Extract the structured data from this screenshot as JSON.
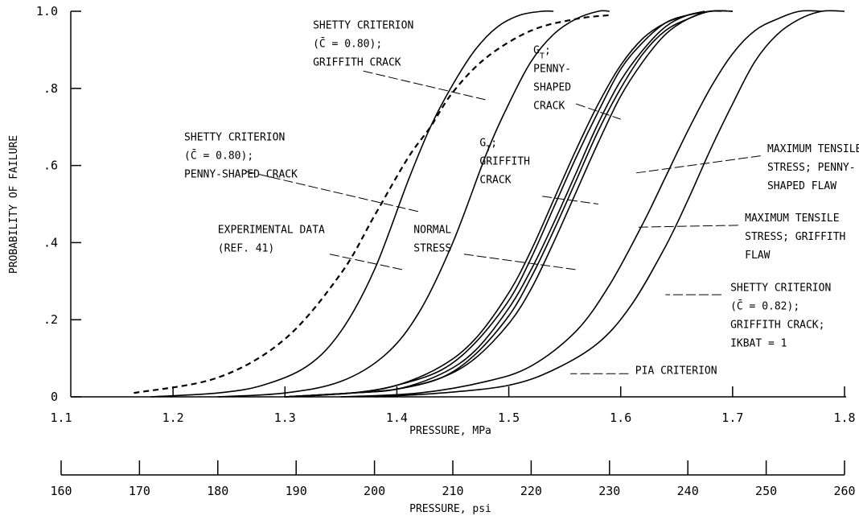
{
  "chart_data": {
    "type": "line",
    "ylabel": "PROBABILITY OF FAILURE",
    "xlabel": "PRESSURE, MPa",
    "xlabel_secondary": "PRESSURE, psi",
    "xlim": [
      1.1,
      1.8
    ],
    "ylim": [
      0,
      1.0
    ],
    "secondary_xlim": [
      160,
      260
    ],
    "x_ticks": [
      "1.1",
      "1.2",
      "1.3",
      "1.4",
      "1.5",
      "1.6",
      "1.7",
      "1.8"
    ],
    "y_ticks": [
      "0",
      ".2",
      ".4",
      ".6",
      ".8",
      "1.0"
    ],
    "secondary_ticks": [
      "160",
      "170",
      "180",
      "190",
      "200",
      "210",
      "220",
      "230",
      "240",
      "250",
      "260"
    ],
    "grid": false,
    "series": [
      {
        "style": "dashed",
        "x": [
          1.165,
          1.24,
          1.3,
          1.35,
          1.38,
          1.41,
          1.43,
          1.45,
          1.48,
          1.52,
          1.56,
          1.59
        ],
        "y": [
          0.01,
          0.05,
          0.15,
          0.32,
          0.47,
          0.62,
          0.7,
          0.79,
          0.88,
          0.95,
          0.98,
          0.99
        ]
      },
      {
        "style": "solid",
        "x": [
          1.18,
          1.24,
          1.28,
          1.32,
          1.35,
          1.38,
          1.41,
          1.43,
          1.45,
          1.47,
          1.49,
          1.51,
          1.53,
          1.54
        ],
        "y": [
          0.0,
          0.01,
          0.03,
          0.08,
          0.17,
          0.33,
          0.56,
          0.7,
          0.81,
          0.9,
          0.96,
          0.99,
          1.0,
          1.0
        ]
      },
      {
        "style": "solid",
        "x": [
          1.24,
          1.3,
          1.35,
          1.39,
          1.42,
          1.45,
          1.48,
          1.5,
          1.52,
          1.54,
          1.56,
          1.58,
          1.59
        ],
        "y": [
          0.0,
          0.01,
          0.04,
          0.11,
          0.22,
          0.4,
          0.63,
          0.76,
          0.87,
          0.94,
          0.98,
          1.0,
          1.0
        ]
      },
      {
        "style": "solid",
        "x": [
          1.3,
          1.36,
          1.4,
          1.44,
          1.47,
          1.5,
          1.52,
          1.54,
          1.56,
          1.58,
          1.6,
          1.62,
          1.64,
          1.66,
          1.675
        ],
        "y": [
          0.0,
          0.01,
          0.03,
          0.08,
          0.15,
          0.27,
          0.38,
          0.51,
          0.64,
          0.76,
          0.86,
          0.93,
          0.97,
          0.99,
          1.0
        ]
      },
      {
        "style": "solid",
        "x": [
          1.3,
          1.36,
          1.4,
          1.44,
          1.47,
          1.5,
          1.52,
          1.54,
          1.56,
          1.58,
          1.6,
          1.62,
          1.64,
          1.66,
          1.68
        ],
        "y": [
          0.0,
          0.01,
          0.03,
          0.07,
          0.14,
          0.25,
          0.36,
          0.49,
          0.62,
          0.74,
          0.85,
          0.92,
          0.97,
          0.99,
          1.0
        ]
      },
      {
        "style": "solid",
        "x": [
          1.3,
          1.36,
          1.4,
          1.44,
          1.47,
          1.5,
          1.52,
          1.54,
          1.56,
          1.58,
          1.6,
          1.62,
          1.64,
          1.66,
          1.68,
          1.69
        ],
        "y": [
          0.0,
          0.01,
          0.02,
          0.06,
          0.12,
          0.23,
          0.33,
          0.45,
          0.58,
          0.71,
          0.82,
          0.9,
          0.96,
          0.99,
          1.0,
          1.0
        ]
      },
      {
        "style": "solid",
        "x": [
          1.3,
          1.36,
          1.4,
          1.44,
          1.47,
          1.5,
          1.52,
          1.54,
          1.56,
          1.58,
          1.6,
          1.62,
          1.64,
          1.66,
          1.68,
          1.7
        ],
        "y": [
          0.0,
          0.01,
          0.02,
          0.05,
          0.11,
          0.21,
          0.31,
          0.43,
          0.56,
          0.69,
          0.8,
          0.89,
          0.95,
          0.98,
          1.0,
          1.0
        ]
      },
      {
        "style": "solid",
        "x": [
          1.3,
          1.36,
          1.4,
          1.44,
          1.47,
          1.5,
          1.52,
          1.54,
          1.56,
          1.58,
          1.6,
          1.62,
          1.64,
          1.66,
          1.68,
          1.7
        ],
        "y": [
          0.0,
          0.01,
          0.02,
          0.05,
          0.1,
          0.19,
          0.28,
          0.4,
          0.53,
          0.66,
          0.78,
          0.87,
          0.94,
          0.98,
          1.0,
          1.0
        ]
      },
      {
        "style": "solid",
        "x": [
          1.35,
          1.42,
          1.48,
          1.52,
          1.56,
          1.59,
          1.62,
          1.64,
          1.66,
          1.68,
          1.7,
          1.72,
          1.74,
          1.76,
          1.78
        ],
        "y": [
          0.0,
          0.01,
          0.04,
          0.08,
          0.17,
          0.29,
          0.45,
          0.57,
          0.69,
          0.8,
          0.89,
          0.95,
          0.98,
          1.0,
          1.0
        ]
      },
      {
        "style": "solid",
        "x": [
          1.38,
          1.44,
          1.5,
          1.54,
          1.58,
          1.61,
          1.64,
          1.66,
          1.68,
          1.7,
          1.72,
          1.74,
          1.76,
          1.78,
          1.8
        ],
        "y": [
          0.0,
          0.01,
          0.03,
          0.07,
          0.14,
          0.24,
          0.39,
          0.51,
          0.64,
          0.76,
          0.87,
          0.94,
          0.98,
          1.0,
          1.0
        ]
      }
    ],
    "annotations": [
      {
        "lines": [
          "SHETTY CRITERION",
          "(C̄ = 0.80);",
          "GRIFFITH CRACK"
        ],
        "x": 1.325,
        "y": 0.955,
        "tx": 1.37,
        "ty": 0.845,
        "px": 1.48,
        "py": 0.77
      },
      {
        "lines": [
          "SHETTY CRITERION",
          "(C̄ = 0.80);",
          "PENNY-SHAPED CRACK"
        ],
        "x": 1.21,
        "y": 0.665,
        "tx": 1.265,
        "ty": 0.585,
        "px": 1.42,
        "py": 0.48
      },
      {
        "lines": [
          "EXPERIMENTAL DATA",
          "(REF. 41)"
        ],
        "x": 1.24,
        "y": 0.425,
        "tx": 1.34,
        "ty": 0.37,
        "px": 1.405,
        "py": 0.33
      },
      {
        "lines": [
          "G_T;",
          "PENNY-",
          "SHAPED",
          "CRACK"
        ],
        "x": 1.522,
        "y": 0.89,
        "tx": 1.56,
        "ty": 0.76,
        "px": 1.6,
        "py": 0.72
      },
      {
        "lines": [
          "G_T;",
          "GRIFFITH",
          "CRACK"
        ],
        "x": 1.474,
        "y": 0.65,
        "tx": 1.53,
        "ty": 0.52,
        "px": 1.58,
        "py": 0.5
      },
      {
        "lines": [
          "NORMAL",
          "STRESS"
        ],
        "x": 1.415,
        "y": 0.425,
        "tx": 1.46,
        "ty": 0.37,
        "px": 1.56,
        "py": 0.33
      },
      {
        "lines": [
          "MAXIMUM TENSILE",
          "STRESS; PENNY-",
          "SHAPED FLAW"
        ],
        "x": 1.731,
        "y": 0.635,
        "tx": 1.725,
        "ty": 0.625,
        "px": 1.612,
        "py": 0.58
      },
      {
        "lines": [
          "MAXIMUM TENSILE",
          "STRESS; GRIFFITH",
          "FLAW"
        ],
        "x": 1.711,
        "y": 0.455,
        "tx": 1.705,
        "ty": 0.445,
        "px": 1.614,
        "py": 0.44
      },
      {
        "lines": [
          "SHETTY CRITERION",
          "(C̄ = 0.82);",
          "GRIFFITH CRACK;",
          "IKBAT = 1"
        ],
        "x": 1.698,
        "y": 0.275,
        "tx": 1.69,
        "ty": 0.265,
        "px": 1.64,
        "py": 0.265
      },
      {
        "lines": [
          "PIA CRITERION"
        ],
        "x": 1.613,
        "y": 0.06,
        "tx": 1.607,
        "ty": 0.06,
        "px": 1.555,
        "py": 0.06
      }
    ]
  }
}
